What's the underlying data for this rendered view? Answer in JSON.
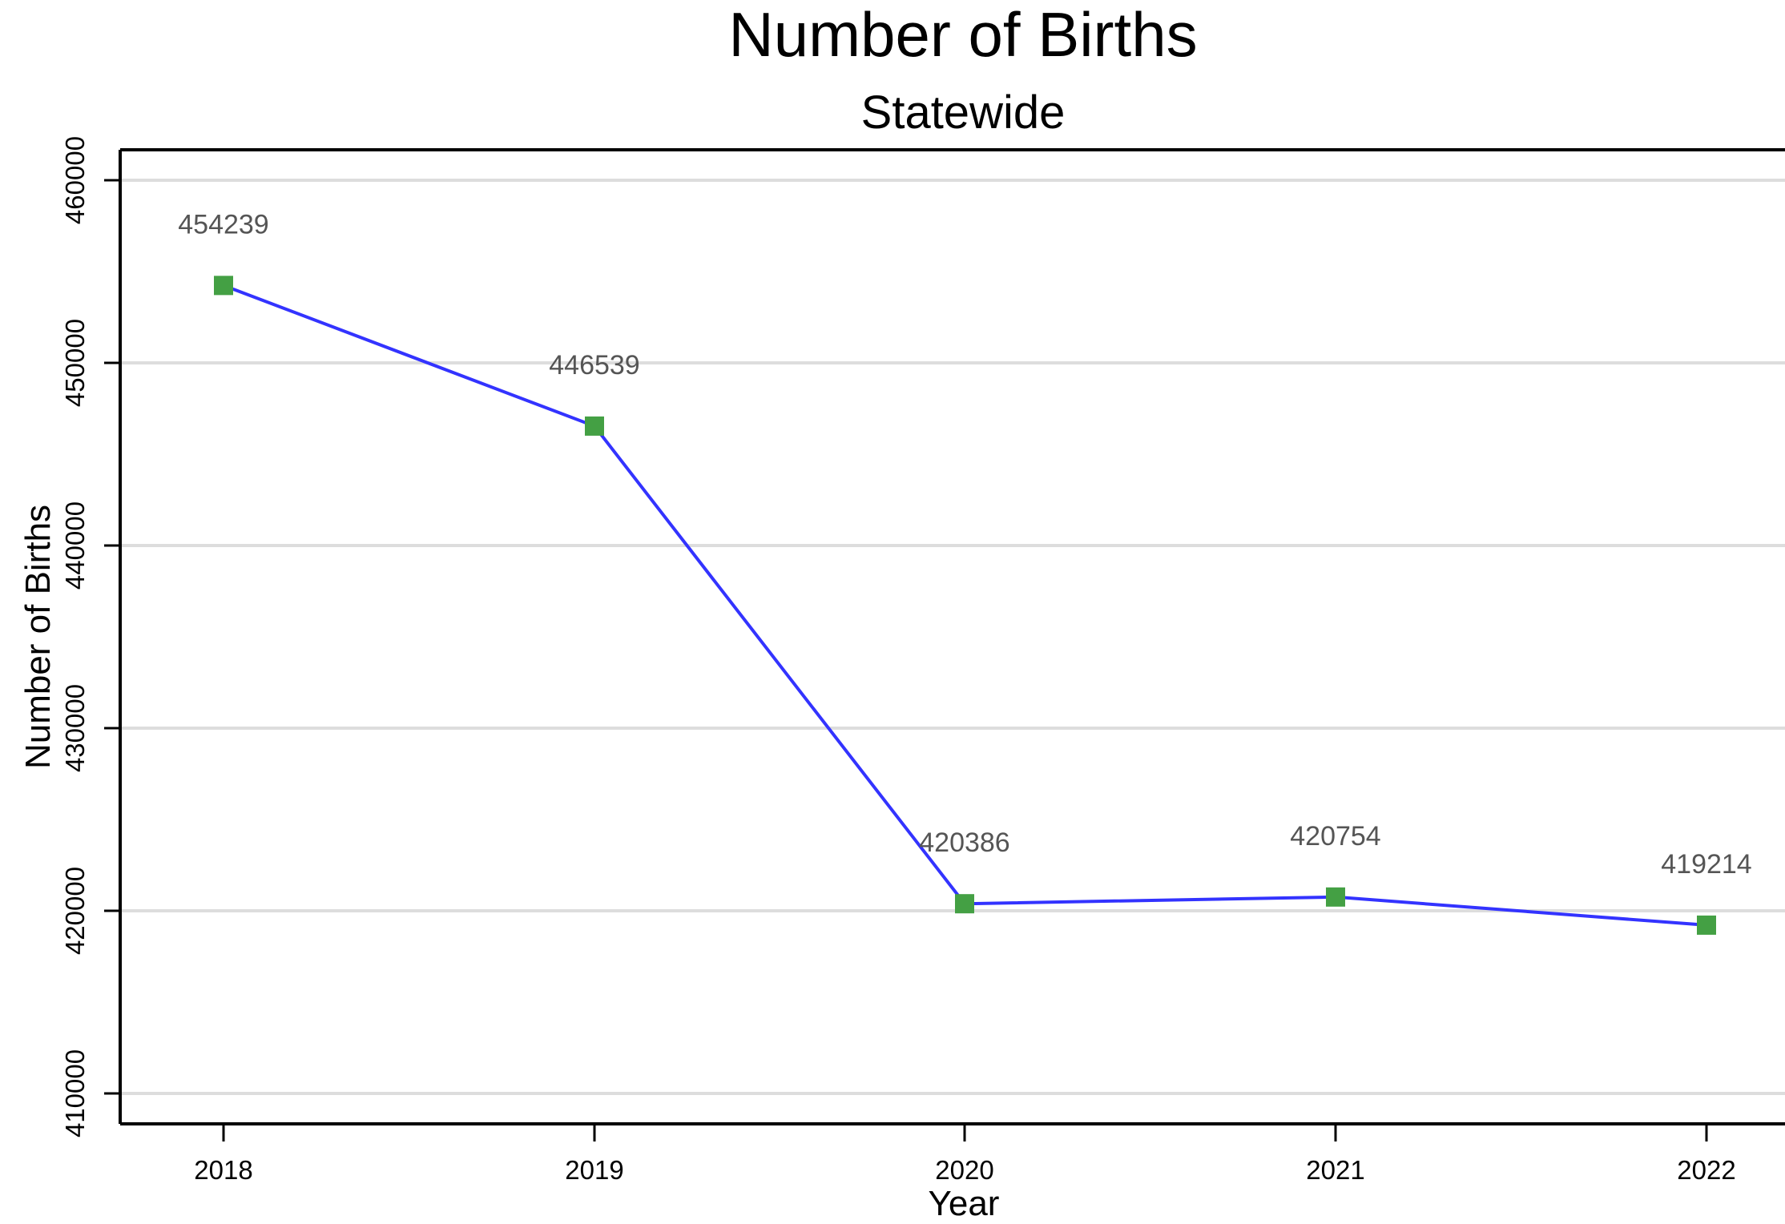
{
  "chart_data": {
    "type": "line",
    "title": "Number of Births",
    "subtitle": "Statewide",
    "xlabel": "Year",
    "ylabel": "Number of Births",
    "categories": [
      "2018",
      "2019",
      "2020",
      "2021",
      "2022"
    ],
    "series": [
      {
        "values": [
          454239,
          446539,
          420386,
          420754,
          419214
        ],
        "line_color": "#3333ff",
        "marker_color": "#44a044",
        "marker": "square"
      }
    ],
    "data_labels": [
      "454239",
      "446539",
      "420386",
      "420754",
      "419214"
    ],
    "yticks": [
      410000,
      420000,
      430000,
      440000,
      450000,
      460000
    ],
    "ytick_labels": [
      "410000",
      "420000",
      "430000",
      "440000",
      "450000",
      "460000"
    ],
    "ylim": [
      408333,
      461667
    ],
    "grid": "horizontal",
    "colors": {
      "gridline": "#dddddd",
      "axis": "#000000",
      "data_label": "#555555"
    }
  }
}
